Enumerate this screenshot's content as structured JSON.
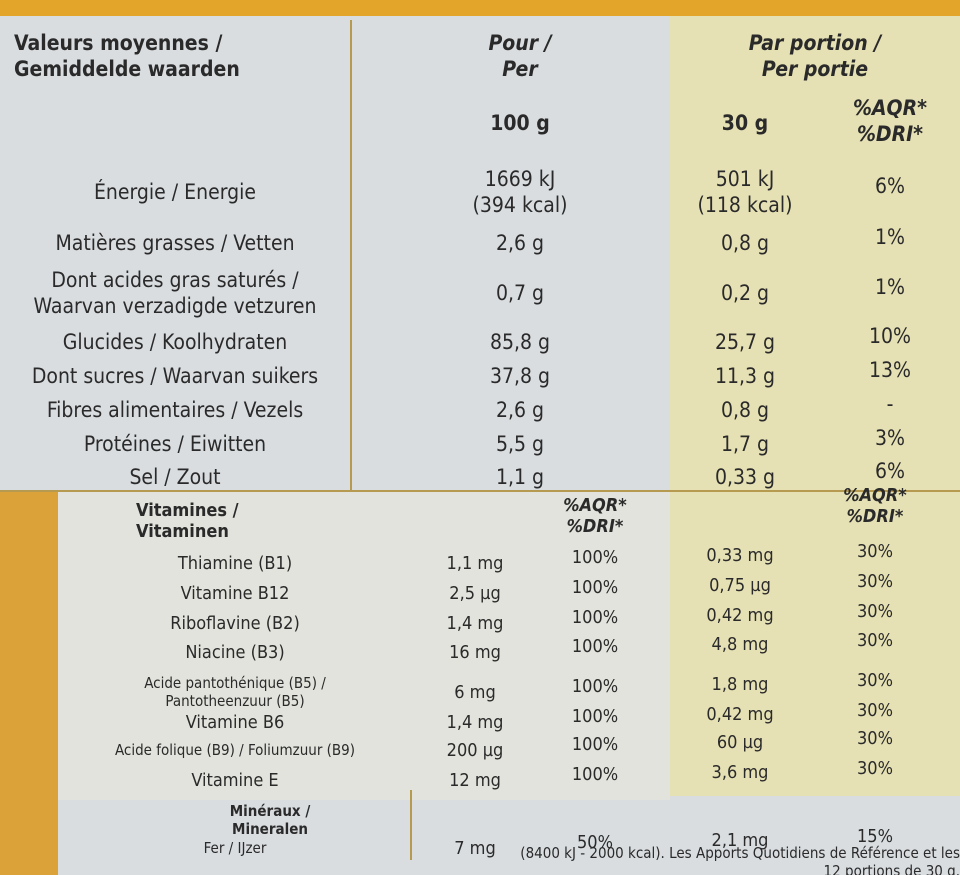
{
  "header": {
    "label": [
      "Valeurs moyennes /",
      "Gemiddelde waarden"
    ],
    "per100": [
      "Pour /",
      "Per"
    ],
    "portion": [
      "Par portion /",
      "Per portie"
    ],
    "unit100": "100 g",
    "unit30": "30 g",
    "pct": [
      "%AQR*",
      "%DRI*"
    ]
  },
  "nutrients": [
    {
      "label": [
        "Énergie / Energie"
      ],
      "per100": [
        "1669 kJ",
        "(394 kcal)"
      ],
      "per30": [
        "501 kJ",
        "(118 kcal)"
      ],
      "pct": "6%"
    },
    {
      "label": [
        "Matières grasses / Vetten"
      ],
      "per100": [
        "2,6 g"
      ],
      "per30": [
        "0,8 g"
      ],
      "pct": "1%"
    },
    {
      "label": [
        "Dont acides gras saturés /",
        "Waarvan verzadigde vetzuren"
      ],
      "per100": [
        "0,7 g"
      ],
      "per30": [
        "0,2 g"
      ],
      "pct": "1%"
    },
    {
      "label": [
        "Glucides / Koolhydraten"
      ],
      "per100": [
        "85,8 g"
      ],
      "per30": [
        "25,7 g"
      ],
      "pct": "10%"
    },
    {
      "label": [
        "Dont sucres / Waarvan suikers"
      ],
      "per100": [
        "37,8 g"
      ],
      "per30": [
        "11,3 g"
      ],
      "pct": "13%"
    },
    {
      "label": [
        "Fibres alimentaires / Vezels"
      ],
      "per100": [
        "2,6 g"
      ],
      "per30": [
        "0,8 g"
      ],
      "pct": "-"
    },
    {
      "label": [
        "Protéines / Eiwitten"
      ],
      "per100": [
        "5,5 g"
      ],
      "per30": [
        "1,7 g"
      ],
      "pct": "3%"
    },
    {
      "label": [
        "Sel / Zout"
      ],
      "per100": [
        "1,1 g"
      ],
      "per30": [
        "0,33 g"
      ],
      "pct": "6%"
    }
  ],
  "vitamins": {
    "title": [
      "Vitamines /",
      "Vitaminen"
    ],
    "pct100": [
      "%AQR*",
      "%DRI*"
    ],
    "pct30": [
      "%AQR*",
      "%DRI*"
    ],
    "rows": [
      {
        "label": [
          "Thiamine (B1)"
        ],
        "per100": "1,1 mg",
        "pct100": "100%",
        "per30": "0,33 mg",
        "pct30": "30%"
      },
      {
        "label": [
          "Vitamine B12"
        ],
        "per100": "2,5 µg",
        "pct100": "100%",
        "per30": "0,75 µg",
        "pct30": "30%"
      },
      {
        "label": [
          "Riboflavine (B2)"
        ],
        "per100": "1,4 mg",
        "pct100": "100%",
        "per30": "0,42 mg",
        "pct30": "30%"
      },
      {
        "label": [
          "Niacine (B3)"
        ],
        "per100": "16 mg",
        "pct100": "100%",
        "per30": "4,8 mg",
        "pct30": "30%"
      },
      {
        "label": [
          "Acide pantothénique (B5) /",
          "Pantotheenzuur (B5)"
        ],
        "per100": "6 mg",
        "pct100": "100%",
        "per30": "1,8 mg",
        "pct30": "30%"
      },
      {
        "label": [
          "Vitamine B6"
        ],
        "per100": "1,4 mg",
        "pct100": "100%",
        "per30": "0,42 mg",
        "pct30": "30%"
      },
      {
        "label": [
          "Acide folique (B9) / Foliumzuur (B9)"
        ],
        "per100": "200 µg",
        "pct100": "100%",
        "per30": "60 µg",
        "pct30": "30%"
      },
      {
        "label": [
          "Vitamine E"
        ],
        "per100": "12 mg",
        "pct100": "100%",
        "per30": "3,6 mg",
        "pct30": "30%"
      }
    ]
  },
  "minerals": {
    "title": [
      "Minéraux /",
      "Mineralen"
    ],
    "rows": [
      {
        "label": [
          "Fer / IJzer"
        ],
        "per100": "7 mg",
        "pct100": "50%",
        "per30": "2,1 mg",
        "pct30": "15%"
      }
    ]
  },
  "footer": [
    "(8400 kJ - 2000 kcal). Les Apports Quotidiens de Référence et les",
    "12 portions de 30 g."
  ]
}
